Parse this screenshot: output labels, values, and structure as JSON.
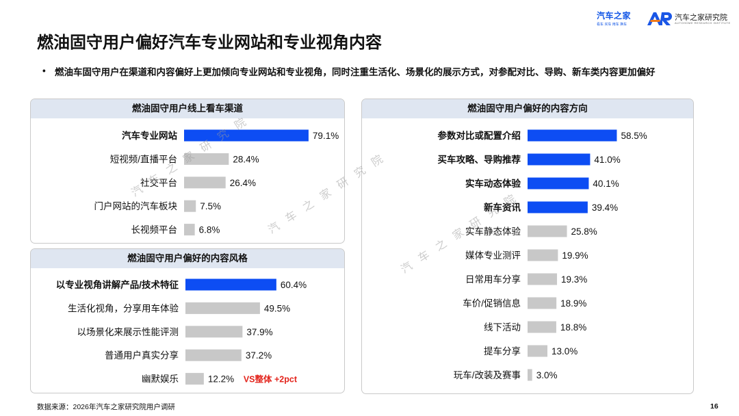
{
  "logos": {
    "autohome": {
      "name": "汽车之家",
      "tagline": "看车 买车 用车 换车"
    },
    "institute": {
      "mark": "AR",
      "name": "汽车之家研究院",
      "tagline": "AUTOHOME RESEARCH INSTITUTE"
    }
  },
  "page": {
    "title": "燃油固守用户偏好汽车专业网站和专业视角内容",
    "bullet": "•",
    "subtitle": "燃油车固守用户在渠道和内容偏好上更加倾向专业网站和专业视角，同时注重生活化、场景化的展示方式，对参配对比、导购、新车类内容更加偏好",
    "footer": "数据来源：2026年汽车之家研究院用户调研",
    "page_number": "16",
    "watermark": "汽车之家研究院"
  },
  "colors": {
    "highlight": "#0d4df3",
    "normal": "#c8c8c8",
    "panel_header": "#dfe6f1",
    "annotation": "#e3241c"
  },
  "chart_data": [
    {
      "type": "bar",
      "title": "燃油固守用户线上看车渠道",
      "categories": [
        "汽车专业网站",
        "短视频/直播平台",
        "社交平台",
        "门户网站的汽车板块",
        "长视频平台"
      ],
      "values": [
        79.1,
        28.4,
        26.4,
        7.5,
        6.8
      ],
      "labels": [
        "79.1%",
        "28.4%",
        "26.4%",
        "7.5%",
        "6.8%"
      ],
      "highlight": [
        true,
        false,
        false,
        false,
        false
      ],
      "orientation": "horizontal",
      "unit": "%"
    },
    {
      "type": "bar",
      "title": "燃油固守用户偏好的内容风格",
      "categories": [
        "以专业视角讲解产品/技术特征",
        "生活化视角，分享用车体验",
        "以场景化来展示性能评测",
        "普通用户真实分享",
        "幽默娱乐"
      ],
      "values": [
        60.4,
        49.5,
        37.9,
        37.2,
        12.2
      ],
      "labels": [
        "60.4%",
        "49.5%",
        "37.9%",
        "37.2%",
        "12.2%"
      ],
      "highlight": [
        true,
        false,
        false,
        false,
        false
      ],
      "annotation": {
        "category": "幽默娱乐",
        "text": "VS整体 +2pct"
      },
      "orientation": "horizontal",
      "unit": "%"
    },
    {
      "type": "bar",
      "title": "燃油固守用户偏好的内容方向",
      "categories": [
        "参数对比或配置介绍",
        "买车攻略、导购推荐",
        "实车动态体验",
        "新车资讯",
        "实车静态体验",
        "媒体专业测评",
        "日常用车分享",
        "车价/促销信息",
        "线下活动",
        "提车分享",
        "玩车/改装及赛事"
      ],
      "values": [
        58.5,
        41.0,
        40.1,
        39.4,
        25.8,
        19.9,
        19.3,
        18.9,
        18.8,
        13.0,
        3.0
      ],
      "labels": [
        "58.5%",
        "41.0%",
        "40.1%",
        "39.4%",
        "25.8%",
        "19.9%",
        "19.3%",
        "18.9%",
        "18.8%",
        "13.0%",
        "3.0%"
      ],
      "highlight": [
        true,
        true,
        true,
        true,
        false,
        false,
        false,
        false,
        false,
        false,
        false
      ],
      "orientation": "horizontal",
      "unit": "%"
    }
  ]
}
